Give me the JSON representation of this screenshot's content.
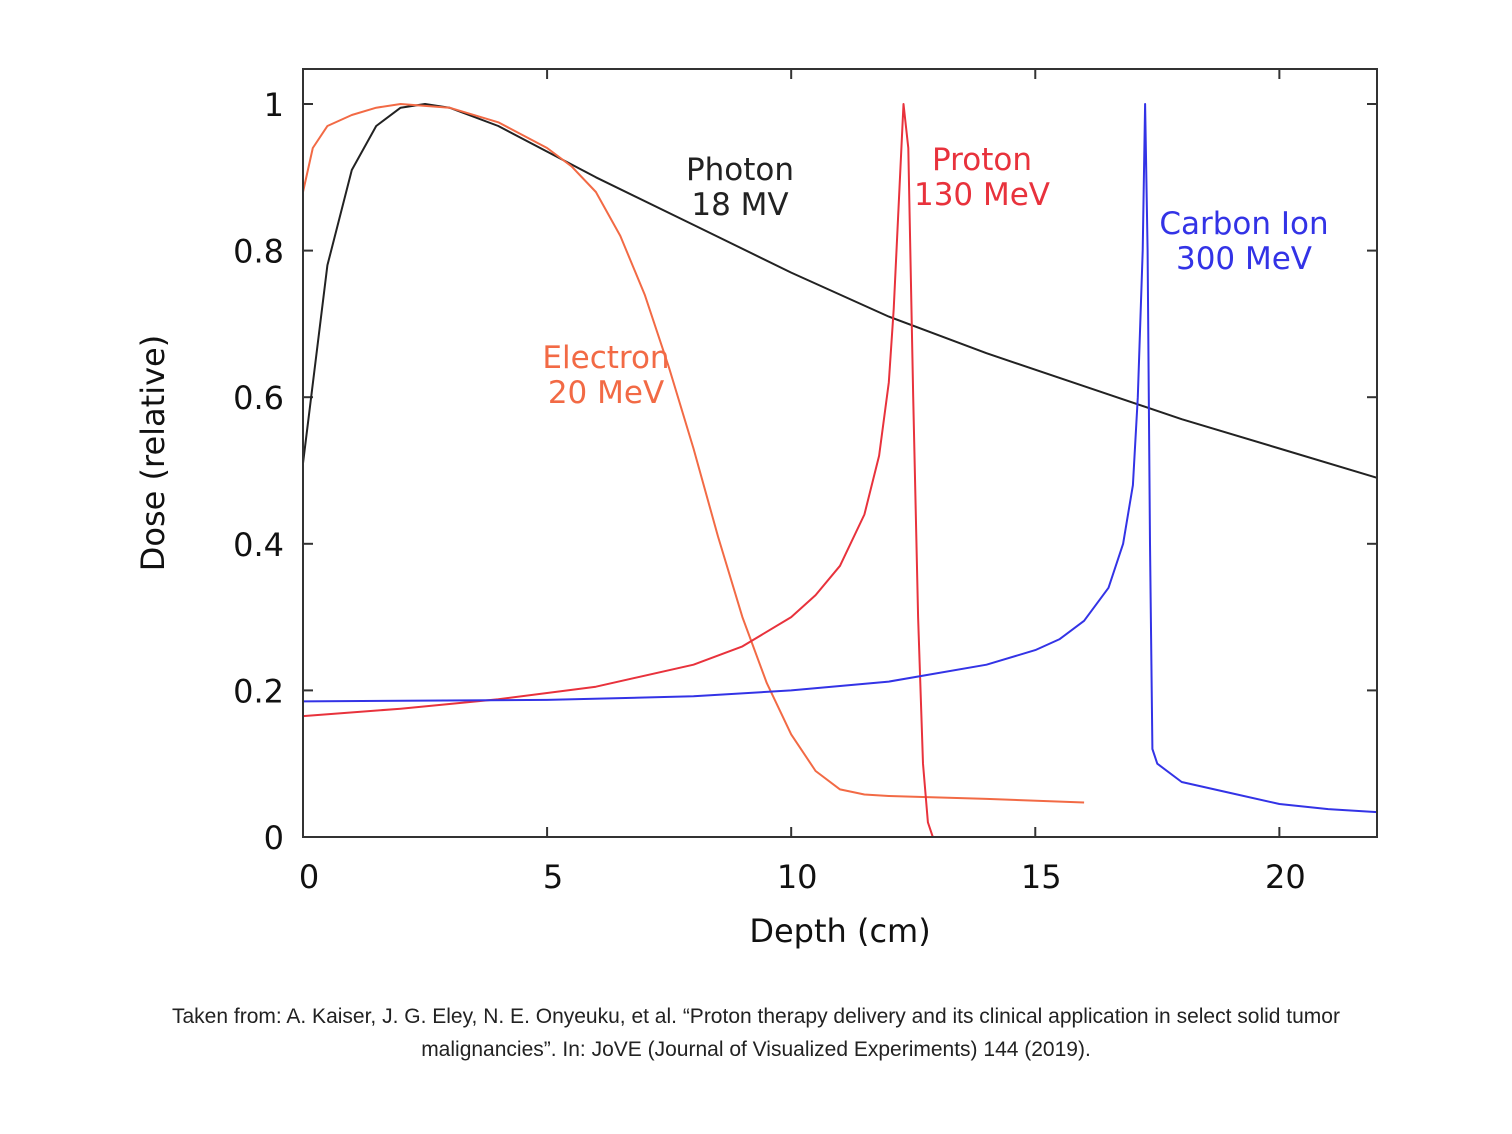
{
  "chart_data": {
    "type": "line",
    "title": "",
    "xlabel": "Depth (cm)",
    "ylabel": "Dose (relative)",
    "xlim": [
      0,
      22
    ],
    "ylim": [
      0,
      1.05
    ],
    "xticks": [
      0,
      5,
      10,
      15,
      20
    ],
    "xtick_labels": [
      "0",
      "5",
      "10",
      "15",
      "20"
    ],
    "yticks": [
      0,
      0.2,
      0.4,
      0.6,
      0.8,
      1
    ],
    "ytick_labels": [
      "0",
      "0.2",
      "0.4",
      "0.6",
      "0.8",
      "1"
    ],
    "grid": false,
    "series": [
      {
        "name": "Photon 18 MV",
        "label_lines": [
          "Photon",
          "18 MV"
        ],
        "color": "#222222",
        "points": [
          [
            0,
            0.51
          ],
          [
            0.5,
            0.78
          ],
          [
            1,
            0.91
          ],
          [
            1.5,
            0.97
          ],
          [
            2,
            0.995
          ],
          [
            2.5,
            1.0
          ],
          [
            3,
            0.995
          ],
          [
            4,
            0.97
          ],
          [
            5,
            0.935
          ],
          [
            6,
            0.9
          ],
          [
            8,
            0.835
          ],
          [
            10,
            0.77
          ],
          [
            12,
            0.71
          ],
          [
            14,
            0.66
          ],
          [
            16,
            0.615
          ],
          [
            18,
            0.57
          ],
          [
            20,
            0.53
          ],
          [
            22,
            0.49
          ]
        ]
      },
      {
        "name": "Electron 20 MeV",
        "label_lines": [
          "Electron",
          "20 MeV"
        ],
        "color": "#f26a45",
        "points": [
          [
            0,
            0.88
          ],
          [
            0.2,
            0.94
          ],
          [
            0.5,
            0.97
          ],
          [
            1,
            0.985
          ],
          [
            1.5,
            0.995
          ],
          [
            2,
            1.0
          ],
          [
            3,
            0.995
          ],
          [
            4,
            0.975
          ],
          [
            5,
            0.94
          ],
          [
            5.5,
            0.915
          ],
          [
            6,
            0.88
          ],
          [
            6.5,
            0.82
          ],
          [
            7,
            0.74
          ],
          [
            7.5,
            0.64
          ],
          [
            8,
            0.53
          ],
          [
            8.5,
            0.41
          ],
          [
            9,
            0.3
          ],
          [
            9.5,
            0.21
          ],
          [
            10,
            0.14
          ],
          [
            10.5,
            0.09
          ],
          [
            11,
            0.065
          ],
          [
            11.5,
            0.058
          ],
          [
            12,
            0.056
          ],
          [
            14,
            0.052
          ],
          [
            16,
            0.047
          ]
        ]
      },
      {
        "name": "Proton 130 MeV",
        "label_lines": [
          "Proton",
          "130 MeV"
        ],
        "color": "#e8323c",
        "points": [
          [
            0,
            0.165
          ],
          [
            2,
            0.175
          ],
          [
            4,
            0.188
          ],
          [
            6,
            0.205
          ],
          [
            8,
            0.235
          ],
          [
            9,
            0.26
          ],
          [
            10,
            0.3
          ],
          [
            10.5,
            0.33
          ],
          [
            11,
            0.37
          ],
          [
            11.5,
            0.44
          ],
          [
            11.8,
            0.52
          ],
          [
            12,
            0.62
          ],
          [
            12.1,
            0.72
          ],
          [
            12.2,
            0.86
          ],
          [
            12.3,
            1.0
          ],
          [
            12.4,
            0.94
          ],
          [
            12.5,
            0.6
          ],
          [
            12.6,
            0.3
          ],
          [
            12.7,
            0.1
          ],
          [
            12.8,
            0.02
          ],
          [
            12.9,
            0.0
          ]
        ]
      },
      {
        "name": "Carbon Ion 300 MeV",
        "label_lines": [
          "Carbon Ion",
          "300 MeV"
        ],
        "color": "#3333e6",
        "points": [
          [
            0,
            0.185
          ],
          [
            5,
            0.187
          ],
          [
            8,
            0.192
          ],
          [
            10,
            0.2
          ],
          [
            12,
            0.212
          ],
          [
            14,
            0.235
          ],
          [
            15,
            0.255
          ],
          [
            15.5,
            0.27
          ],
          [
            16,
            0.295
          ],
          [
            16.5,
            0.34
          ],
          [
            16.8,
            0.4
          ],
          [
            17,
            0.48
          ],
          [
            17.1,
            0.6
          ],
          [
            17.2,
            0.8
          ],
          [
            17.25,
            1.0
          ],
          [
            17.3,
            0.8
          ],
          [
            17.35,
            0.4
          ],
          [
            17.4,
            0.12
          ],
          [
            17.5,
            0.1
          ],
          [
            18,
            0.075
          ],
          [
            19,
            0.06
          ],
          [
            20,
            0.045
          ],
          [
            21,
            0.038
          ],
          [
            22,
            0.034
          ]
        ]
      }
    ]
  },
  "caption": {
    "line1": "Taken from: A. Kaiser, J. G. Eley, N. E. Onyeuku, et al. “Proton therapy delivery and its clinical application in select solid tumor",
    "line2": "malignancies”. In: JoVE (Journal of Visualized Experiments) 144 (2019)."
  }
}
